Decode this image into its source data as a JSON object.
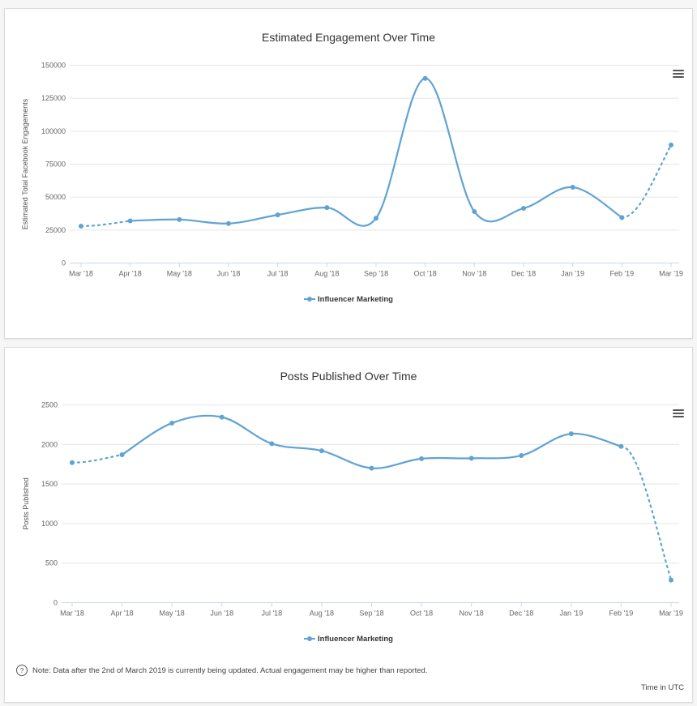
{
  "charts": [
    {
      "title": "Estimated Engagement Over Time",
      "legend": "Influencer Marketing",
      "color": "#60a3d3"
    },
    {
      "title": "Posts Published Over Time",
      "legend": "Influencer Marketing",
      "color": "#60a3d3"
    }
  ],
  "note": "Note: Data after the 2nd of March 2019 is currently being updated. Actual engagement may be higher than reported.",
  "note_icon": "question-circle-icon",
  "menu_icon": "hamburger-menu-icon",
  "time_zone": "Time in UTC",
  "chart_data": [
    {
      "type": "line",
      "title": "Estimated Engagement Over Time",
      "xlabel": "",
      "ylabel": "Estimated Total Facebook Engagements",
      "categories": [
        "Mar '18",
        "Apr '18",
        "May '18",
        "Jun '18",
        "Jul '18",
        "Aug '18",
        "Sep '18",
        "Oct '18",
        "Nov '18",
        "Dec '18",
        "Jan '19",
        "Feb '19",
        "Mar '19"
      ],
      "yticks": [
        "0",
        "25000",
        "50000",
        "75000",
        "100000",
        "125000",
        "150000"
      ],
      "ylim": [
        0,
        150000
      ],
      "grid": true,
      "legend_position": "bottom-center",
      "series": [
        {
          "name": "Influencer Marketing",
          "values": [
            28000,
            32000,
            33000,
            30000,
            36500,
            42000,
            34000,
            140000,
            39000,
            41500,
            57500,
            34500,
            89500
          ],
          "dotted_segments": [
            0,
            11
          ]
        }
      ]
    },
    {
      "type": "line",
      "title": "Posts Published Over Time",
      "xlabel": "",
      "ylabel": "Posts Published",
      "categories": [
        "Mar '18",
        "Apr '18",
        "May '18",
        "Jun '18",
        "Jul '18",
        "Aug '18",
        "Sep '18",
        "Oct '18",
        "Nov '18",
        "Dec '18",
        "Jan '19",
        "Feb '19",
        "Mar '19"
      ],
      "yticks": [
        "0",
        "500",
        "1000",
        "1500",
        "2000",
        "2500"
      ],
      "ylim": [
        0,
        2500
      ],
      "grid": true,
      "legend_position": "bottom-center",
      "series": [
        {
          "name": "Influencer Marketing",
          "values": [
            1770,
            1870,
            2270,
            2345,
            2010,
            1920,
            1700,
            1820,
            1825,
            1860,
            2135,
            1975,
            285
          ],
          "dotted_segments": [
            0,
            11
          ]
        }
      ]
    }
  ]
}
